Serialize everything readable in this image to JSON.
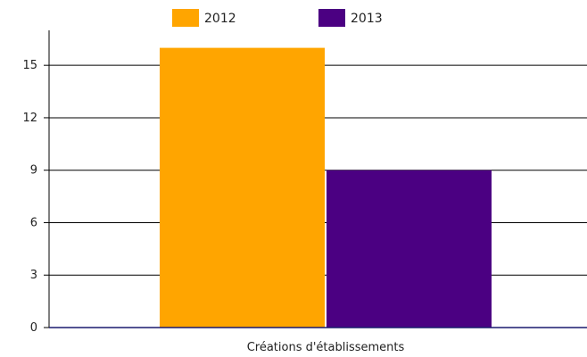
{
  "chart_data": {
    "type": "bar",
    "categories": [
      "Créations d'établissements"
    ],
    "series": [
      {
        "name": "2012",
        "values": [
          16
        ],
        "color": "#FFA500"
      },
      {
        "name": "2013",
        "values": [
          9
        ],
        "color": "#4B0082"
      }
    ],
    "title": "",
    "xlabel": "",
    "ylabel": "",
    "ylim": [
      0,
      17
    ],
    "yticks": [
      0,
      3,
      6,
      9,
      12,
      15
    ],
    "grid": true,
    "legend": "top-center"
  }
}
